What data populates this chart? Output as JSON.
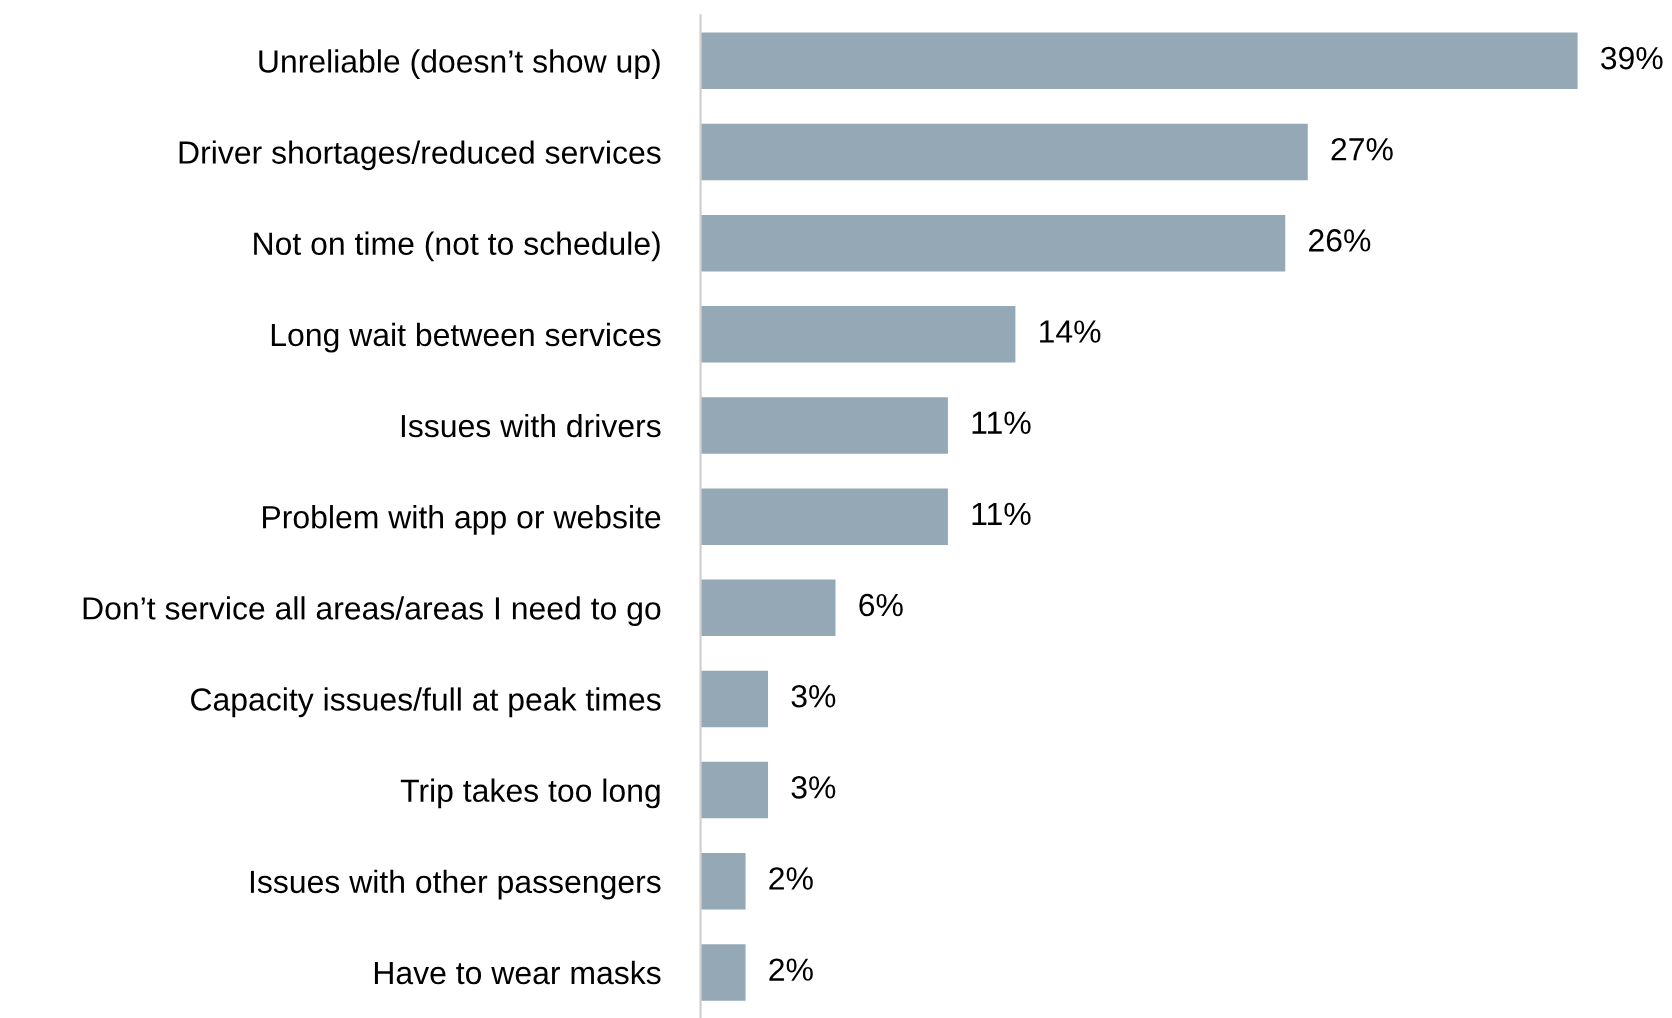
{
  "chart_data": {
    "type": "bar",
    "orientation": "horizontal",
    "categories": [
      "Unreliable (doesn’t show up)",
      "Driver shortages/reduced services",
      "Not on time (not to schedule)",
      "Long wait between services",
      "Issues with drivers",
      "Problem with app or website",
      "Don’t service all areas/areas I need to go",
      "Capacity issues/full at peak times",
      "Trip takes too long",
      "Issues with other passengers",
      "Have to wear masks"
    ],
    "values": [
      39,
      27,
      26,
      14,
      11,
      11,
      6,
      3,
      3,
      2,
      2
    ],
    "value_labels": [
      "39%",
      "27%",
      "26%",
      "14%",
      "11%",
      "11%",
      "6%",
      "3%",
      "3%",
      "2%",
      "2%"
    ],
    "color": "#94a8b5",
    "tick_labels": "y",
    "grid": false,
    "legend": false
  }
}
